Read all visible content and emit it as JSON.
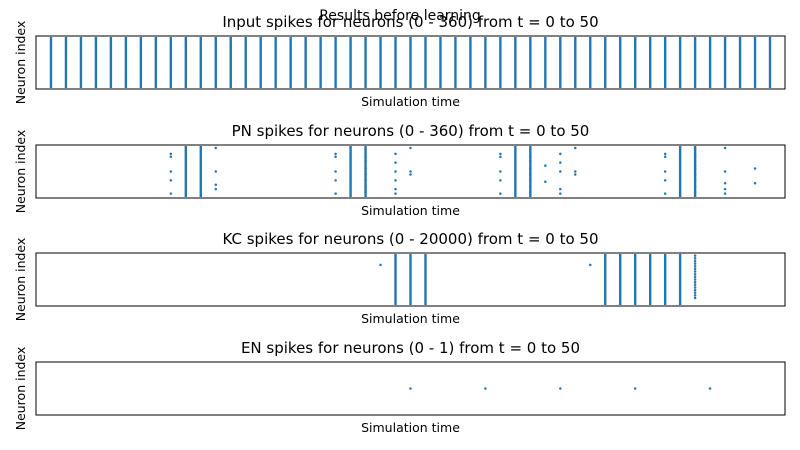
{
  "figure": {
    "suptitle": "Results before learning"
  },
  "chart_data": [
    {
      "type": "scatter",
      "title": "Input spikes for neurons (0 - 360) from t = 0 to 50",
      "xlabel": "Simulation time",
      "ylabel": "Neuron index",
      "xlim": [
        0,
        50
      ],
      "ylim": [
        0,
        360
      ],
      "ticks_visible": false,
      "color": "#1f77b4",
      "vlines": [
        1,
        2,
        3,
        4,
        5,
        6,
        7,
        8,
        9,
        10,
        11,
        12,
        13,
        14,
        15,
        16,
        17,
        18,
        19,
        20,
        21,
        22,
        23,
        24,
        25,
        26,
        27,
        28,
        29,
        30,
        31,
        32,
        33,
        34,
        35,
        36,
        37,
        38,
        39,
        40,
        41,
        42,
        43,
        44,
        45,
        46,
        47,
        48,
        49
      ],
      "points": []
    },
    {
      "type": "scatter",
      "title": "PN spikes for neurons (0 - 360) from t = 0 to 50",
      "xlabel": "Simulation time",
      "ylabel": "Neuron index",
      "xlim": [
        0,
        50
      ],
      "ylim": [
        0,
        360
      ],
      "ticks_visible": false,
      "color": "#1f77b4",
      "vlines": [
        10,
        11,
        21,
        22,
        32,
        33,
        43,
        44
      ],
      "points": [
        [
          9,
          300
        ],
        [
          9,
          280
        ],
        [
          9,
          180
        ],
        [
          9,
          120
        ],
        [
          9,
          30
        ],
        [
          12,
          340
        ],
        [
          12,
          180
        ],
        [
          12,
          90
        ],
        [
          12,
          60
        ],
        [
          20,
          300
        ],
        [
          20,
          280
        ],
        [
          20,
          180
        ],
        [
          20,
          120
        ],
        [
          20,
          30
        ],
        [
          22,
          330
        ],
        [
          22,
          280
        ],
        [
          22,
          250
        ],
        [
          22,
          200
        ],
        [
          22,
          160
        ],
        [
          22,
          120
        ],
        [
          22,
          80
        ],
        [
          22,
          40
        ],
        [
          24,
          300
        ],
        [
          24,
          240
        ],
        [
          24,
          180
        ],
        [
          24,
          120
        ],
        [
          24,
          60
        ],
        [
          24,
          30
        ],
        [
          25,
          340
        ],
        [
          25,
          180
        ],
        [
          25,
          160
        ],
        [
          31,
          300
        ],
        [
          31,
          280
        ],
        [
          31,
          180
        ],
        [
          31,
          120
        ],
        [
          31,
          30
        ],
        [
          33,
          330
        ],
        [
          33,
          280
        ],
        [
          33,
          250
        ],
        [
          33,
          200
        ],
        [
          33,
          160
        ],
        [
          33,
          120
        ],
        [
          33,
          80
        ],
        [
          33,
          40
        ],
        [
          34,
          220
        ],
        [
          34,
          110
        ],
        [
          35,
          300
        ],
        [
          35,
          240
        ],
        [
          35,
          180
        ],
        [
          35,
          60
        ],
        [
          35,
          30
        ],
        [
          36,
          340
        ],
        [
          36,
          180
        ],
        [
          36,
          160
        ],
        [
          42,
          300
        ],
        [
          42,
          280
        ],
        [
          42,
          180
        ],
        [
          42,
          120
        ],
        [
          42,
          30
        ],
        [
          44,
          330
        ],
        [
          44,
          300
        ],
        [
          44,
          280
        ],
        [
          44,
          250
        ],
        [
          44,
          220
        ],
        [
          44,
          200
        ],
        [
          44,
          160
        ],
        [
          44,
          120
        ],
        [
          44,
          80
        ],
        [
          44,
          40
        ],
        [
          46,
          340
        ],
        [
          46,
          180
        ],
        [
          46,
          100
        ],
        [
          46,
          60
        ],
        [
          46,
          30
        ],
        [
          48,
          200
        ],
        [
          48,
          100
        ]
      ]
    },
    {
      "type": "scatter",
      "title": "KC spikes for neurons (0 - 20000) from t = 0 to 50",
      "xlabel": "Simulation time",
      "ylabel": "Neuron index",
      "xlim": [
        0,
        50
      ],
      "ylim": [
        0,
        20000
      ],
      "ticks_visible": false,
      "color": "#1f77b4",
      "vlines": [
        24,
        25,
        26,
        38,
        39,
        40,
        41,
        42,
        43
      ],
      "points": [
        [
          23,
          15500
        ],
        [
          37,
          15500
        ],
        [
          44,
          19000
        ],
        [
          44,
          18000
        ],
        [
          44,
          17000
        ],
        [
          44,
          16000
        ],
        [
          44,
          15000
        ],
        [
          44,
          14000
        ],
        [
          44,
          13000
        ],
        [
          44,
          12000
        ],
        [
          44,
          11000
        ],
        [
          44,
          10000
        ],
        [
          44,
          9000
        ],
        [
          44,
          8000
        ],
        [
          44,
          7000
        ],
        [
          44,
          6000
        ],
        [
          44,
          5000
        ],
        [
          44,
          4000
        ],
        [
          44,
          3000
        ]
      ]
    },
    {
      "type": "scatter",
      "title": "EN spikes for neurons (0 - 1) from t = 0 to 50",
      "xlabel": "Simulation time",
      "ylabel": "Neuron index",
      "xlim": [
        0,
        50
      ],
      "ylim": [
        0,
        1
      ],
      "ticks_visible": false,
      "color": "#1f77b4",
      "vlines": [],
      "points": [
        [
          25,
          0.5
        ],
        [
          30,
          0.5
        ],
        [
          35,
          0.5
        ],
        [
          40,
          0.5
        ],
        [
          45,
          0.5
        ]
      ]
    }
  ]
}
